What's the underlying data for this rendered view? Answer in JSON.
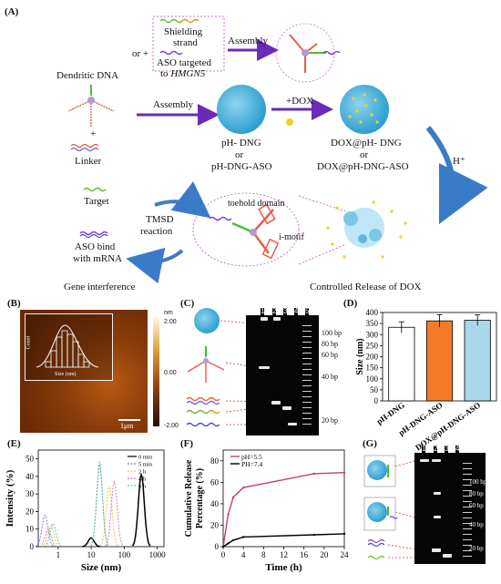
{
  "panel_a": {
    "label": "(A)",
    "or_plus": "or +",
    "shielding": [
      "Shielding",
      "strand"
    ],
    "aso_target": [
      "ASO targeted",
      "to "
    ],
    "hmgn5": "HMGN5",
    "assembly_top": "Assembly",
    "dendritic": "Dendritic DNA",
    "plus": "+",
    "linker": "Linker",
    "assembly_mid": "Assembly",
    "dox": "+DOX",
    "dng": [
      "pH- DNG",
      "or",
      "pH-DNG-ASO"
    ],
    "dox_dng": [
      "DOX@pH- DNG",
      "or",
      "DOX@pH-DNG-ASO"
    ],
    "hplus": "H⁺",
    "target": "Target",
    "tmsd": [
      "TMSD",
      "reaction"
    ],
    "toehold": "toehold domain",
    "imotif": "i-motif",
    "aso_bind": [
      "ASO bind",
      "with mRNA"
    ],
    "gene": "Gene interference",
    "controlled": "Controlled Release of DOX"
  },
  "panel_b": {
    "label": "(B)",
    "nm": "nm",
    "top": "2.00",
    "mid": "0.00",
    "bottom": "-2.00",
    "scale": "1μm",
    "inset_xlabel": "Size (nm)",
    "inset_ylabel": "Count"
  },
  "panel_c": {
    "label": "(C)",
    "lanes": [
      "1",
      "2",
      "3",
      "4",
      "5"
    ],
    "ladder": [
      "100 bp",
      "80 bp",
      "60 bp",
      "40 bp",
      "20 bp"
    ]
  },
  "panel_d": {
    "label": "(D)",
    "chart_data": {
      "type": "bar",
      "categories": [
        "pH-DNG",
        "pH-DNG-ASO",
        "DOX@pH-DNG-ASO"
      ],
      "values": [
        333,
        362,
        365
      ],
      "errors": [
        25,
        28,
        25
      ],
      "colors": [
        "#ffffff",
        "#f47a2a",
        "#a9d8ea"
      ],
      "ylabel": "Size (nm)",
      "ylim": [
        0,
        400
      ],
      "yticks": [
        "0",
        "50",
        "100",
        "150",
        "200",
        "250",
        "300",
        "350",
        "400"
      ]
    }
  },
  "panel_e": {
    "label": "(E)",
    "chart_data": {
      "type": "line",
      "xlabel": "Size (nm)",
      "ylabel": "Intensity (%)",
      "xscale": "log",
      "ylim": [
        0,
        55
      ],
      "xticks": [
        "1",
        "10",
        "100",
        "1000"
      ],
      "yticks": [
        "0",
        "10",
        "20",
        "30",
        "40",
        "50"
      ],
      "legend_position": "top-right",
      "series": [
        {
          "name": "0 min",
          "color": "#000000",
          "peaks": [
            [
              10,
              5
            ],
            [
              330,
              41
            ]
          ]
        },
        {
          "name": "5 min",
          "color": "#7b7bd8",
          "peaks": [
            [
              0.4,
              18
            ],
            [
              18,
              46
            ]
          ]
        },
        {
          "name": "2 h",
          "color": "#e8c830",
          "peaks": [
            [
              0.6,
              12
            ],
            [
              35,
              34
            ]
          ]
        },
        {
          "name": "4 h",
          "color": "#c77ad0",
          "peaks": [
            [
              0.5,
              10
            ],
            [
              50,
              37
            ]
          ]
        },
        {
          "name": "6 h",
          "color": "#55c8a8",
          "peaks": [
            [
              0.7,
              13
            ],
            [
              18,
              48
            ]
          ]
        }
      ]
    }
  },
  "panel_f": {
    "label": "(F)",
    "chart_data": {
      "type": "line",
      "xlabel": "Time (h)",
      "ylabel": [
        "Cumulative Release",
        "Percentage (%)"
      ],
      "xlim": [
        0,
        24
      ],
      "ylim": [
        0,
        90
      ],
      "xticks": [
        "0",
        "4",
        "8",
        "12",
        "16",
        "20",
        "24"
      ],
      "yticks": [
        "0",
        "20",
        "40",
        "60",
        "80"
      ],
      "legend_position": "top-left",
      "series": [
        {
          "name": "pH=5.5",
          "color": "#c0407a",
          "x": [
            0,
            1,
            2,
            4,
            18,
            24
          ],
          "y": [
            0,
            30,
            46,
            55,
            68,
            69
          ]
        },
        {
          "name": "PH=7.4",
          "color": "#000000",
          "x": [
            0,
            1,
            2,
            4,
            18,
            24
          ],
          "y": [
            0,
            3,
            6,
            9,
            11,
            12
          ]
        }
      ]
    }
  },
  "panel_g": {
    "label": "(G)",
    "lanes": [
      "1",
      "2",
      "3",
      "4"
    ],
    "ladder": [
      "100 bp",
      "80 bp",
      "60 bp",
      "40 bp",
      "20 bp"
    ]
  }
}
